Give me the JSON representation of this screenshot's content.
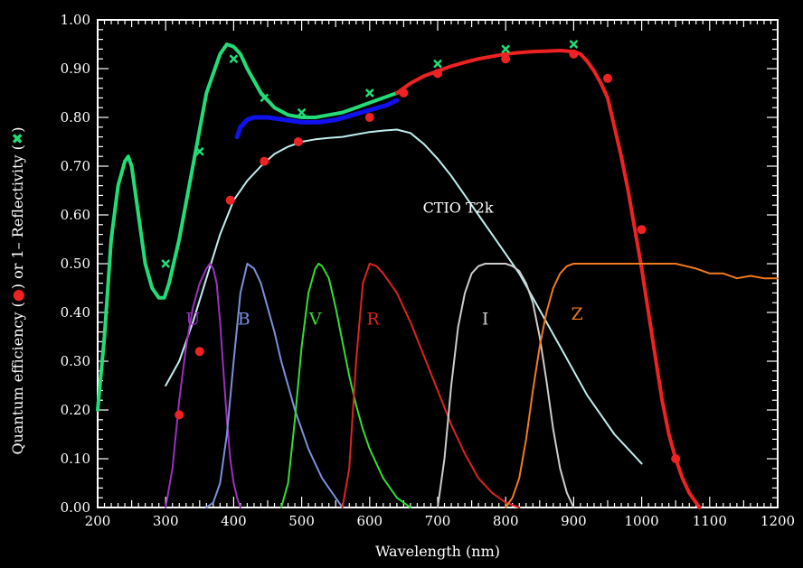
{
  "chart_data": {
    "type": "line",
    "title": "",
    "xlabel": "Wavelength (nm)",
    "ylabel_parts": [
      "Quantum efficiency (",
      "●",
      ") or 1– Reflectivity (",
      "✖",
      ")"
    ],
    "xlim": [
      200,
      1200
    ],
    "ylim": [
      0,
      1
    ],
    "x_ticks": [
      "200",
      "300",
      "400",
      "500",
      "600",
      "700",
      "800",
      "900",
      "1000",
      "1100",
      "1200"
    ],
    "y_ticks": [
      "0.00",
      "0.10",
      "0.20",
      "0.30",
      "0.40",
      "0.50",
      "0.60",
      "0.70",
      "0.80",
      "0.90",
      "1.00"
    ],
    "grid": false,
    "colors": {
      "background": "#000000",
      "axes": "#ffffff",
      "reflectivity": "#22dd77",
      "qe_red": "#ee2222",
      "blue_curve": "#1111ee",
      "ctio": "#bfeeee",
      "U": "#9b2fbf",
      "B": "#7b8fdd",
      "V": "#33dd33",
      "R": "#dd2222",
      "I": "#cccccc",
      "Z": "#f07a20"
    },
    "series": [
      {
        "key": "reflectivity_curve",
        "color": "#22dd77",
        "x": [
          200,
          210,
          220,
          230,
          240,
          245,
          250,
          260,
          270,
          280,
          290,
          298,
          305,
          320,
          340,
          360,
          380,
          390,
          400,
          410,
          420,
          440,
          460,
          480,
          500,
          520,
          540,
          560,
          580,
          600,
          620,
          640,
          650
        ],
        "y": [
          0.2,
          0.35,
          0.55,
          0.66,
          0.71,
          0.72,
          0.7,
          0.6,
          0.5,
          0.45,
          0.43,
          0.43,
          0.46,
          0.55,
          0.7,
          0.85,
          0.93,
          0.95,
          0.945,
          0.93,
          0.9,
          0.85,
          0.82,
          0.805,
          0.8,
          0.8,
          0.805,
          0.81,
          0.82,
          0.83,
          0.84,
          0.85,
          0.855
        ]
      },
      {
        "key": "blue_curve",
        "color": "#1111ee",
        "x": [
          405,
          410,
          420,
          430,
          450,
          475,
          500,
          525,
          550,
          575,
          600,
          625,
          640
        ],
        "y": [
          0.76,
          0.78,
          0.795,
          0.8,
          0.8,
          0.795,
          0.79,
          0.79,
          0.795,
          0.805,
          0.815,
          0.825,
          0.835
        ]
      },
      {
        "key": "red_qe_curve",
        "color": "#ee2222",
        "x": [
          640,
          660,
          680,
          700,
          720,
          740,
          760,
          780,
          800,
          820,
          840,
          860,
          880,
          900,
          910,
          920,
          930,
          940,
          950,
          960,
          970,
          980,
          990,
          1000,
          1010,
          1020,
          1030,
          1040,
          1050,
          1060,
          1070,
          1080,
          1085
        ],
        "y": [
          0.85,
          0.87,
          0.885,
          0.895,
          0.905,
          0.913,
          0.92,
          0.925,
          0.93,
          0.933,
          0.935,
          0.936,
          0.937,
          0.935,
          0.93,
          0.915,
          0.895,
          0.87,
          0.84,
          0.78,
          0.72,
          0.65,
          0.57,
          0.49,
          0.4,
          0.31,
          0.22,
          0.15,
          0.1,
          0.06,
          0.03,
          0.01,
          0.0
        ]
      },
      {
        "key": "ctio_t2k",
        "name": "CTIO T2k",
        "color": "#bfeeee",
        "x": [
          300,
          320,
          340,
          360,
          380,
          400,
          420,
          440,
          460,
          480,
          500,
          520,
          540,
          560,
          580,
          600,
          620,
          640,
          660,
          680,
          700,
          720,
          740,
          760,
          780,
          800,
          820,
          840,
          860,
          880,
          900,
          920,
          940,
          960,
          980,
          1000
        ],
        "y": [
          0.25,
          0.3,
          0.38,
          0.47,
          0.56,
          0.63,
          0.67,
          0.7,
          0.725,
          0.74,
          0.75,
          0.755,
          0.758,
          0.76,
          0.765,
          0.77,
          0.773,
          0.775,
          0.768,
          0.745,
          0.715,
          0.68,
          0.64,
          0.6,
          0.56,
          0.52,
          0.48,
          0.43,
          0.38,
          0.33,
          0.28,
          0.23,
          0.19,
          0.15,
          0.12,
          0.09
        ]
      },
      {
        "key": "U",
        "name": "U",
        "color": "#9b2fbf",
        "x": [
          300,
          310,
          320,
          330,
          340,
          350,
          360,
          365,
          370,
          375,
          380,
          385,
          390,
          395,
          400,
          405,
          410
        ],
        "y": [
          0.0,
          0.08,
          0.22,
          0.33,
          0.41,
          0.46,
          0.49,
          0.5,
          0.49,
          0.46,
          0.38,
          0.28,
          0.18,
          0.1,
          0.05,
          0.02,
          0.0
        ]
      },
      {
        "key": "B",
        "name": "B",
        "color": "#7b8fdd",
        "x": [
          360,
          370,
          380,
          390,
          400,
          410,
          420,
          430,
          440,
          450,
          460,
          470,
          480,
          490,
          500,
          510,
          520,
          530,
          540,
          550,
          560
        ],
        "y": [
          0.0,
          0.01,
          0.05,
          0.15,
          0.3,
          0.44,
          0.5,
          0.49,
          0.46,
          0.41,
          0.36,
          0.3,
          0.25,
          0.2,
          0.16,
          0.12,
          0.09,
          0.06,
          0.04,
          0.02,
          0.0
        ]
      },
      {
        "key": "V",
        "name": "V",
        "color": "#33dd33",
        "x": [
          470,
          480,
          490,
          500,
          510,
          520,
          525,
          530,
          540,
          550,
          560,
          570,
          580,
          590,
          600,
          610,
          620,
          630,
          640,
          650,
          660
        ],
        "y": [
          0.0,
          0.05,
          0.18,
          0.33,
          0.44,
          0.49,
          0.5,
          0.495,
          0.47,
          0.41,
          0.34,
          0.27,
          0.21,
          0.16,
          0.12,
          0.09,
          0.06,
          0.04,
          0.02,
          0.01,
          0.0
        ]
      },
      {
        "key": "R",
        "name": "R",
        "color": "#dd2222",
        "x": [
          560,
          570,
          580,
          590,
          600,
          610,
          620,
          640,
          660,
          680,
          700,
          720,
          740,
          760,
          780,
          800,
          820
        ],
        "y": [
          0.0,
          0.08,
          0.3,
          0.46,
          0.5,
          0.495,
          0.48,
          0.44,
          0.38,
          0.31,
          0.24,
          0.17,
          0.11,
          0.06,
          0.03,
          0.01,
          0.0
        ]
      },
      {
        "key": "I",
        "name": "I",
        "color": "#cccccc",
        "x": [
          700,
          710,
          720,
          730,
          740,
          750,
          760,
          770,
          780,
          790,
          800,
          810,
          820,
          830,
          840,
          850,
          860,
          870,
          880,
          890,
          900
        ],
        "y": [
          0.0,
          0.1,
          0.25,
          0.37,
          0.44,
          0.48,
          0.495,
          0.5,
          0.5,
          0.5,
          0.5,
          0.495,
          0.485,
          0.46,
          0.42,
          0.35,
          0.26,
          0.16,
          0.08,
          0.03,
          0.0
        ]
      },
      {
        "key": "Z",
        "name": "Z",
        "color": "#f07a20",
        "x": [
          800,
          810,
          820,
          830,
          840,
          850,
          860,
          870,
          880,
          890,
          900,
          950,
          1000,
          1050,
          1080,
          1100,
          1120,
          1140,
          1160,
          1180,
          1200
        ],
        "y": [
          0.0,
          0.02,
          0.06,
          0.14,
          0.24,
          0.33,
          0.4,
          0.45,
          0.48,
          0.495,
          0.5,
          0.5,
          0.5,
          0.5,
          0.49,
          0.48,
          0.48,
          0.47,
          0.475,
          0.47,
          0.47
        ]
      }
    ],
    "points_reflectivity_x": {
      "color": "#22dd77",
      "x": [
        300,
        350,
        400,
        445,
        500,
        600,
        700,
        800,
        900
      ],
      "y": [
        0.5,
        0.73,
        0.92,
        0.84,
        0.81,
        0.85,
        0.91,
        0.94,
        0.95
      ]
    },
    "points_qe": {
      "color": "#ee2222",
      "x": [
        320,
        350,
        395,
        445,
        495,
        600,
        650,
        700,
        800,
        900,
        950,
        1000,
        1050
      ],
      "y": [
        0.19,
        0.32,
        0.63,
        0.71,
        0.75,
        0.8,
        0.85,
        0.89,
        0.92,
        0.93,
        0.88,
        0.57,
        0.1
      ]
    },
    "annotations": {
      "ctio_label": "CTIO T2k",
      "filter_labels": [
        {
          "text": "U",
          "x": 340,
          "y": 0.375,
          "color": "#9b2fbf"
        },
        {
          "text": "B",
          "x": 415,
          "y": 0.375,
          "color": "#7b8fdd"
        },
        {
          "text": "V",
          "x": 520,
          "y": 0.375,
          "color": "#33dd33"
        },
        {
          "text": "R",
          "x": 605,
          "y": 0.375,
          "color": "#dd2222"
        },
        {
          "text": "I",
          "x": 770,
          "y": 0.375,
          "color": "#cccccc"
        },
        {
          "text": "Z",
          "x": 905,
          "y": 0.385,
          "color": "#f07a20"
        }
      ]
    }
  }
}
